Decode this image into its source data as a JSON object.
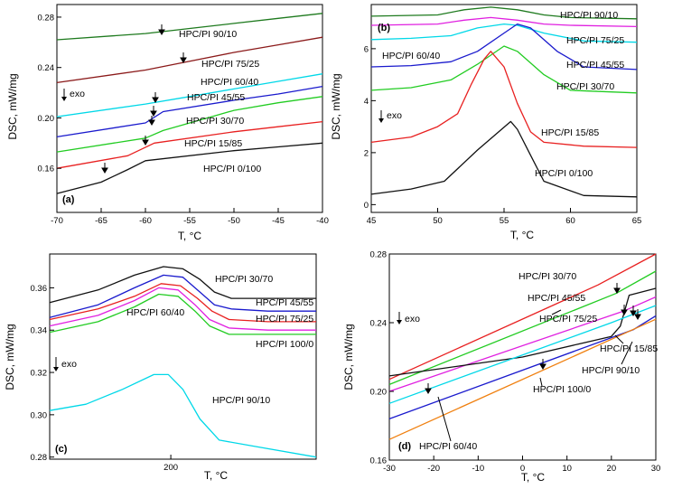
{
  "chart_data": [
    {
      "panel": "(a)",
      "type": "line",
      "xlabel": "T, °C",
      "ylabel": "DSC, mW/mg",
      "xlim": [
        -70,
        -40
      ],
      "ylim": [
        0.125,
        0.29
      ],
      "xticks": [
        -70,
        -65,
        -60,
        -55,
        -50,
        -45,
        -40
      ],
      "yticks": [
        0.16,
        0.2,
        0.24,
        0.28
      ],
      "annotation": "exo",
      "series": [
        {
          "name": "HPC/PI 90/10",
          "color": "#1e7a1e",
          "x": [
            -70,
            -60,
            -55,
            -50,
            -45,
            -40
          ],
          "y": [
            0.262,
            0.267,
            0.271,
            0.275,
            0.279,
            0.283
          ]
        },
        {
          "name": "HPC/PI 75/25",
          "color": "#8b1a1a",
          "x": [
            -70,
            -60,
            -55,
            -50,
            -45,
            -40
          ],
          "y": [
            0.228,
            0.238,
            0.245,
            0.252,
            0.258,
            0.264
          ]
        },
        {
          "name": "HPC/PI 60/40",
          "color": "#00d8e8",
          "x": [
            -70,
            -60,
            -55,
            -50,
            -45,
            -40
          ],
          "y": [
            0.201,
            0.211,
            0.217,
            0.223,
            0.229,
            0.235
          ]
        },
        {
          "name": "HPC/PI 45/55",
          "color": "#1a1acd",
          "x": [
            -70,
            -60,
            -58,
            -50,
            -45,
            -40
          ],
          "y": [
            0.185,
            0.196,
            0.205,
            0.214,
            0.219,
            0.225
          ]
        },
        {
          "name": "HPC/PI 30/70",
          "color": "#22cc22",
          "x": [
            -70,
            -60,
            -58,
            -50,
            -45,
            -40
          ],
          "y": [
            0.173,
            0.184,
            0.19,
            0.206,
            0.212,
            0.217
          ]
        },
        {
          "name": "HPC/PI 15/85",
          "color": "#e82020",
          "x": [
            -70,
            -62,
            -59,
            -50,
            -45,
            -40
          ],
          "y": [
            0.16,
            0.17,
            0.18,
            0.189,
            0.193,
            0.197
          ]
        },
        {
          "name": "HPC/PI 0/100",
          "color": "#111111",
          "x": [
            -70,
            -65,
            -62,
            -60,
            -50,
            -45,
            -40
          ],
          "y": [
            0.14,
            0.149,
            0.159,
            0.166,
            0.174,
            0.177,
            0.18
          ]
        }
      ]
    },
    {
      "panel": "(b)",
      "type": "line",
      "xlabel": "T, °C",
      "ylabel": "DSC, mW/mg",
      "xlim": [
        45,
        65
      ],
      "ylim": [
        -0.3,
        7.7
      ],
      "xticks": [
        45,
        50,
        55,
        60,
        65
      ],
      "yticks": [
        0,
        2,
        4,
        6
      ],
      "annotation": "exo",
      "series": [
        {
          "name": "HPC/PI 90/10",
          "color": "#1e7a1e",
          "x": [
            45,
            50,
            52,
            54,
            56,
            58,
            60,
            65
          ],
          "y": [
            7.25,
            7.3,
            7.5,
            7.6,
            7.5,
            7.3,
            7.2,
            7.15
          ]
        },
        {
          "name": "HPC/PI 75/25",
          "color": "#e020e0",
          "x": [
            45,
            50,
            52,
            54,
            56,
            58,
            60,
            65
          ],
          "y": [
            6.9,
            6.95,
            7.1,
            7.2,
            7.1,
            6.95,
            6.9,
            6.85
          ]
        },
        {
          "name": "HPC/PI 60/40",
          "color": "#00d8e8",
          "x": [
            45,
            48,
            51,
            53,
            55,
            56,
            58,
            61,
            65
          ],
          "y": [
            6.35,
            6.4,
            6.5,
            6.8,
            6.95,
            6.9,
            6.6,
            6.3,
            6.25
          ]
        },
        {
          "name": "HPC/PI 45/55",
          "color": "#1a1acd",
          "x": [
            45,
            48,
            51,
            53,
            55,
            56,
            57,
            59,
            61,
            65
          ],
          "y": [
            5.3,
            5.35,
            5.5,
            5.9,
            6.6,
            6.95,
            6.8,
            5.9,
            5.3,
            5.2
          ]
        },
        {
          "name": "HPC/PI 30/70",
          "color": "#22cc22",
          "x": [
            45,
            48,
            51,
            53,
            55,
            56,
            58,
            60,
            65
          ],
          "y": [
            4.4,
            4.5,
            4.8,
            5.4,
            6.1,
            5.9,
            5.0,
            4.4,
            4.3
          ]
        },
        {
          "name": "HPC/PI 15/85",
          "color": "#e82020",
          "x": [
            45,
            48,
            50,
            51.5,
            52.5,
            53.5,
            54,
            55,
            56,
            57,
            58,
            61,
            65
          ],
          "y": [
            2.4,
            2.6,
            3.0,
            3.5,
            4.6,
            5.6,
            5.9,
            5.3,
            3.9,
            2.8,
            2.4,
            2.25,
            2.2
          ]
        },
        {
          "name": "HPC/PI 0/100",
          "color": "#111111",
          "x": [
            45,
            48,
            50.5,
            53,
            55.5,
            56,
            57,
            58,
            61,
            65
          ],
          "y": [
            0.4,
            0.6,
            0.9,
            2.1,
            3.2,
            2.9,
            1.9,
            0.9,
            0.35,
            0.3
          ]
        }
      ]
    },
    {
      "panel": "(c)",
      "type": "line",
      "xlabel": "T, °C",
      "ylabel": "DSC, mW/mg",
      "xlim": [
        150,
        260
      ],
      "ylim": [
        0.279,
        0.376
      ],
      "xticks": [
        200
      ],
      "yticks": [
        0.28,
        0.3,
        0.32,
        0.34,
        0.36
      ],
      "annotation": "exo",
      "series": [
        {
          "name": "HPC/PI 30/70",
          "color": "#111111",
          "x": [
            150,
            170,
            185,
            197,
            205,
            212,
            218,
            225,
            240,
            260
          ],
          "y": [
            0.353,
            0.359,
            0.366,
            0.37,
            0.369,
            0.364,
            0.358,
            0.355,
            0.355,
            0.355
          ]
        },
        {
          "name": "HPC/PI 45/55",
          "color": "#1a1acd",
          "x": [
            150,
            170,
            185,
            197,
            205,
            212,
            218,
            225,
            240,
            260
          ],
          "y": [
            0.346,
            0.352,
            0.36,
            0.366,
            0.365,
            0.358,
            0.352,
            0.35,
            0.349,
            0.349
          ]
        },
        {
          "name": "HPC/PI 75/25",
          "color": "#e82020",
          "x": [
            150,
            170,
            185,
            196,
            204,
            211,
            217,
            224,
            240,
            260
          ],
          "y": [
            0.345,
            0.35,
            0.356,
            0.362,
            0.361,
            0.355,
            0.349,
            0.345,
            0.344,
            0.344
          ]
        },
        {
          "name": "HPC/PI 60/40",
          "color": "#e020e0",
          "x": [
            150,
            170,
            185,
            195,
            203,
            210,
            216,
            224,
            240,
            260
          ],
          "y": [
            0.342,
            0.347,
            0.354,
            0.36,
            0.359,
            0.352,
            0.345,
            0.341,
            0.34,
            0.34
          ]
        },
        {
          "name": "HPC/PI 100/0",
          "color": "#22cc22",
          "x": [
            150,
            170,
            185,
            195,
            203,
            210,
            216,
            224,
            240,
            260
          ],
          "y": [
            0.339,
            0.344,
            0.351,
            0.357,
            0.356,
            0.349,
            0.342,
            0.338,
            0.338,
            0.338
          ]
        },
        {
          "name": "HPC/PI 90/10",
          "color": "#00d8e8",
          "x": [
            150,
            165,
            180,
            193,
            199,
            205,
            212,
            220,
            235,
            260
          ],
          "y": [
            0.302,
            0.305,
            0.312,
            0.319,
            0.319,
            0.312,
            0.298,
            0.288,
            0.285,
            0.28
          ]
        }
      ]
    },
    {
      "panel": "(d)",
      "type": "line",
      "xlabel": "T, °C",
      "ylabel": "DSC, mW/mg",
      "xlim": [
        -30,
        30
      ],
      "ylim": [
        0.16,
        0.28
      ],
      "xticks": [
        -30,
        -20,
        -10,
        0,
        10,
        20,
        30
      ],
      "yticks": [
        0.16,
        0.2,
        0.24,
        0.28
      ],
      "annotation": "exo",
      "series": [
        {
          "name": "HPC/PI 30/70",
          "color": "#e82020",
          "x": [
            -30,
            17,
            30
          ],
          "y": [
            0.207,
            0.262,
            0.28
          ]
        },
        {
          "name": "HPC/PI 45/55",
          "color": "#22cc22",
          "x": [
            -30,
            21,
            30
          ],
          "y": [
            0.204,
            0.257,
            0.27
          ]
        },
        {
          "name": "HPC/PI 75/25",
          "color": "#e020e0",
          "x": [
            -30,
            23,
            30
          ],
          "y": [
            0.2,
            0.247,
            0.255
          ]
        },
        {
          "name": "HPC/PI 15/85",
          "color": "#111111",
          "x": [
            -30,
            0,
            20,
            22,
            24,
            30
          ],
          "y": [
            0.209,
            0.22,
            0.232,
            0.238,
            0.256,
            0.26
          ]
        },
        {
          "name": "HPC/PI 90/10",
          "color": "#00d8e8",
          "x": [
            -30,
            20,
            30
          ],
          "y": [
            0.193,
            0.24,
            0.25
          ]
        },
        {
          "name": "HPC/PI 100/0",
          "color": "#1a1acd",
          "x": [
            -30,
            25,
            30
          ],
          "y": [
            0.184,
            0.236,
            0.244
          ]
        },
        {
          "name": "HPC/PI 60/40",
          "color": "#f08010",
          "x": [
            -30,
            30
          ],
          "y": [
            0.172,
            0.242
          ]
        }
      ]
    }
  ]
}
